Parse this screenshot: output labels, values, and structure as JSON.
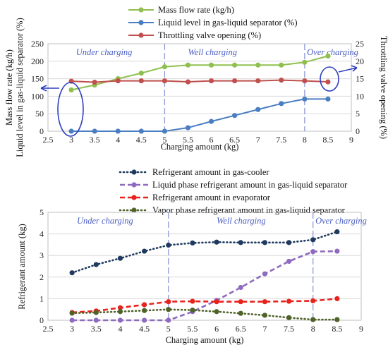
{
  "chart_data": [
    {
      "type": "line",
      "xlabel": "Charging amount (kg)",
      "ylabel_left": "Mass flow rate (kg/h)",
      "ylabel_left2": "Liquid level in gas-liquid separator (%)",
      "ylabel_right": "Throttling valve opening (%)",
      "xlim": [
        2.5,
        9
      ],
      "xticks": [
        "2.5",
        "3",
        "3.5",
        "4",
        "4.5",
        "5",
        "5.5",
        "6",
        "6.5",
        "7",
        "7.5",
        "8",
        "8.5",
        "9"
      ],
      "ylim_left": [
        0,
        250
      ],
      "yticks_left": [
        "0",
        "50",
        "100",
        "150",
        "200",
        "250"
      ],
      "ylim_right": [
        0,
        25
      ],
      "yticks_right": [
        "0",
        "5",
        "10",
        "15",
        "20",
        "25"
      ],
      "legend_position": "top",
      "regions": [
        {
          "label": "Under charging",
          "x": 3.1
        },
        {
          "label": "Well charging",
          "x": 5.5
        },
        {
          "label": "Over charging",
          "x": 8.05
        }
      ],
      "dividers": [
        5,
        8
      ],
      "series": [
        {
          "name": "Mass flow rate (kg/h)",
          "axis": "left",
          "color": "#8fbf4f",
          "x": [
            3,
            3.5,
            4,
            4.5,
            5,
            5.5,
            6,
            6.5,
            7,
            7.5,
            8,
            8.5
          ],
          "y": [
            118,
            132,
            150,
            166,
            184,
            189,
            189,
            189,
            189,
            189,
            197,
            215
          ]
        },
        {
          "name": "Liquid level in gas-liquid separator (%)",
          "axis": "left",
          "color": "#4a7ec2",
          "x": [
            3,
            3.5,
            4,
            4.5,
            5,
            5.5,
            6,
            6.5,
            7,
            7.5,
            8,
            8.5
          ],
          "y": [
            0,
            0,
            0,
            0,
            0,
            10,
            28,
            45,
            62,
            79,
            92,
            92
          ]
        },
        {
          "name": "Throttling valve opening (%)",
          "axis": "right",
          "color": "#c0504d",
          "x": [
            3,
            3.5,
            4,
            4.5,
            5,
            5.5,
            6,
            6.5,
            7,
            7.5,
            8,
            8.5
          ],
          "y": [
            14.3,
            14.0,
            14.4,
            14.4,
            14.4,
            14.1,
            14.4,
            14.4,
            14.4,
            14.6,
            14.4,
            14.1
          ]
        }
      ]
    },
    {
      "type": "line",
      "xlabel": "Charging amount (kg)",
      "ylabel": "Refrigerant amount (kg)",
      "xlim": [
        2.5,
        9
      ],
      "xticks": [
        "2.5",
        "3",
        "3.5",
        "4",
        "4.5",
        "5",
        "5.5",
        "6",
        "6.5",
        "7",
        "7.5",
        "8",
        "8.5",
        "9"
      ],
      "ylim": [
        0,
        5
      ],
      "yticks": [
        "0",
        "1",
        "2",
        "3",
        "4",
        "5"
      ],
      "legend_position": "top",
      "regions": [
        {
          "label": "Under charging",
          "x": 3.1
        },
        {
          "label": "Well charging",
          "x": 6.0
        },
        {
          "label": "Over charging",
          "x": 8.05
        }
      ],
      "dividers": [
        5,
        8
      ],
      "series": [
        {
          "name": "Refrigerant amount in gas-cooler",
          "color": "#1f3a5f",
          "style": "dotted",
          "x": [
            3,
            3.5,
            4,
            4.5,
            5,
            5.5,
            6,
            6.5,
            7,
            7.5,
            8,
            8.5
          ],
          "y": [
            2.2,
            2.58,
            2.87,
            3.2,
            3.48,
            3.58,
            3.62,
            3.6,
            3.6,
            3.6,
            3.73,
            4.1
          ]
        },
        {
          "name": "Liquid phase refrigerant amount in gas-liquid separator",
          "color": "#8e6bbf",
          "style": "dashed",
          "x": [
            3,
            3.5,
            4,
            4.5,
            5,
            5.5,
            6,
            6.5,
            7,
            7.5,
            8,
            8.5
          ],
          "y": [
            0,
            0,
            0,
            0,
            0,
            0.4,
            0.92,
            1.52,
            2.15,
            2.73,
            3.18,
            3.2
          ]
        },
        {
          "name": "Refrigerant amount in evaporator",
          "color": "#e8231e",
          "style": "dashed",
          "x": [
            3,
            3.5,
            4,
            4.5,
            5,
            5.5,
            6,
            6.5,
            7,
            7.5,
            8,
            8.5
          ],
          "y": [
            0.36,
            0.43,
            0.58,
            0.72,
            0.86,
            0.88,
            0.86,
            0.86,
            0.86,
            0.88,
            0.9,
            1.0
          ]
        },
        {
          "name": "Vapor phase refrigerant amount in gas-liquid separator",
          "color": "#4f6228",
          "style": "dotted",
          "x": [
            3,
            3.5,
            4,
            4.5,
            5,
            5.5,
            6,
            6.5,
            7,
            7.5,
            8,
            8.5
          ],
          "y": [
            0.33,
            0.36,
            0.4,
            0.45,
            0.5,
            0.47,
            0.4,
            0.32,
            0.23,
            0.12,
            0.03,
            0.03
          ]
        }
      ]
    }
  ]
}
